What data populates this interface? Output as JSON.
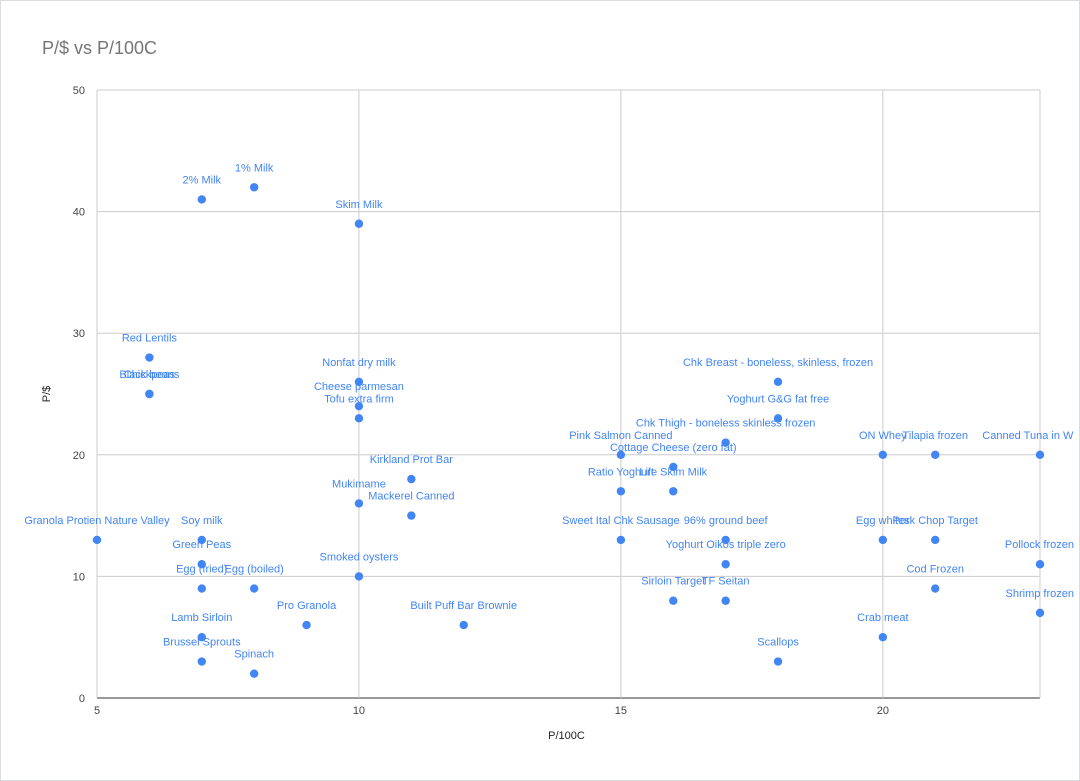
{
  "chart_data": {
    "type": "scatter",
    "title": "P/$ vs P/100C",
    "xlabel": "P/100C",
    "ylabel": "P/$",
    "xlim": [
      5,
      23
    ],
    "ylim": [
      0,
      50
    ],
    "xticks": [
      5,
      10,
      15,
      20
    ],
    "yticks": [
      0,
      10,
      20,
      30,
      40,
      50
    ],
    "grid": true,
    "legend": "none",
    "point_color": "#4285f4",
    "points": [
      {
        "label": "2% Milk",
        "x": 7,
        "y": 41
      },
      {
        "label": "1% Milk",
        "x": 8,
        "y": 42
      },
      {
        "label": "Skim Milk",
        "x": 10,
        "y": 39
      },
      {
        "label": "Red Lentils",
        "x": 6,
        "y": 28
      },
      {
        "label": "Chickpeas",
        "x": 6,
        "y": 25
      },
      {
        "label": "Black beans",
        "x": 6,
        "y": 25
      },
      {
        "label": "Nonfat dry milk",
        "x": 10,
        "y": 26
      },
      {
        "label": "Cheese parmesan",
        "x": 10,
        "y": 24
      },
      {
        "label": "Tofu extra firm",
        "x": 10,
        "y": 23
      },
      {
        "label": "Kirkland Prot Bar",
        "x": 11,
        "y": 18
      },
      {
        "label": "Mukimame",
        "x": 10,
        "y": 16
      },
      {
        "label": "Mackerel Canned",
        "x": 11,
        "y": 15
      },
      {
        "label": "Granola Protien Nature Valley",
        "x": 5,
        "y": 13
      },
      {
        "label": "Soy milk",
        "x": 7,
        "y": 13
      },
      {
        "label": "Green Peas",
        "x": 7,
        "y": 11
      },
      {
        "label": "Egg (fried)",
        "x": 7,
        "y": 9
      },
      {
        "label": "Egg (boiled)",
        "x": 8,
        "y": 9
      },
      {
        "label": "Smoked oysters",
        "x": 10,
        "y": 10
      },
      {
        "label": "Pro Granola",
        "x": 9,
        "y": 6
      },
      {
        "label": "Built Puff Bar Brownie",
        "x": 12,
        "y": 6
      },
      {
        "label": "Lamb Sirloin",
        "x": 7,
        "y": 5
      },
      {
        "label": "Brussel Sprouts",
        "x": 7,
        "y": 3
      },
      {
        "label": "Spinach",
        "x": 8,
        "y": 2
      },
      {
        "label": "Chk Breast - boneless, skinless, frozen",
        "x": 18,
        "y": 26
      },
      {
        "label": "Yoghurt G&G fat free",
        "x": 18,
        "y": 23
      },
      {
        "label": "Chk Thigh - boneless skinless frozen",
        "x": 17,
        "y": 21
      },
      {
        "label": "Pink Salmon Canned",
        "x": 15,
        "y": 20
      },
      {
        "label": "Cottage Cheese (zero fat)",
        "x": 16,
        "y": 19
      },
      {
        "label": "Ratio Yoghurt",
        "x": 15,
        "y": 17
      },
      {
        "label": "Life Skim Milk",
        "x": 16,
        "y": 17
      },
      {
        "label": "Sweet Ital Chk Sausage",
        "x": 15,
        "y": 13
      },
      {
        "label": "96% ground beef",
        "x": 17,
        "y": 13
      },
      {
        "label": "Yoghurt Oikos triple zero",
        "x": 17,
        "y": 11
      },
      {
        "label": "Sirloin Target",
        "x": 16,
        "y": 8
      },
      {
        "label": "TF Seitan",
        "x": 17,
        "y": 8
      },
      {
        "label": "Scallops",
        "x": 18,
        "y": 3
      },
      {
        "label": "ON Whey",
        "x": 20,
        "y": 20
      },
      {
        "label": "Tilapia frozen",
        "x": 21,
        "y": 20
      },
      {
        "label": "Canned Tuna in W",
        "x": 23,
        "y": 20
      },
      {
        "label": "Egg whites",
        "x": 20,
        "y": 13
      },
      {
        "label": "Pork Chop Target",
        "x": 21,
        "y": 13
      },
      {
        "label": "Pollock frozen",
        "x": 23,
        "y": 11
      },
      {
        "label": "Cod Frozen",
        "x": 21,
        "y": 9
      },
      {
        "label": "Shrimp frozen",
        "x": 23,
        "y": 7
      },
      {
        "label": "Crab meat",
        "x": 20,
        "y": 5
      }
    ]
  }
}
